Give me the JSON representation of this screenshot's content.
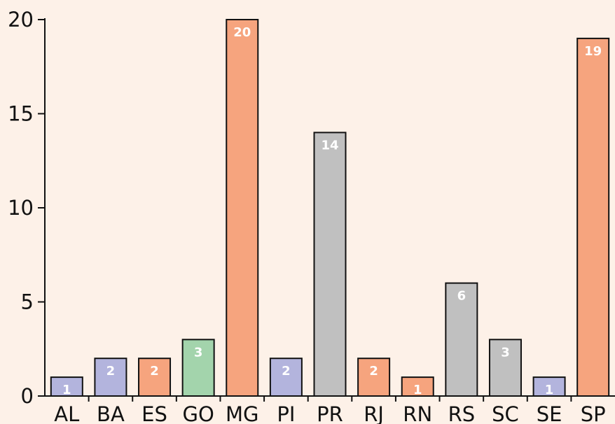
{
  "chart_data": {
    "type": "bar",
    "categories": [
      "AL",
      "BA",
      "ES",
      "GO",
      "MG",
      "PI",
      "PR",
      "RJ",
      "RN",
      "RS",
      "SC",
      "SE",
      "SP"
    ],
    "values": [
      1,
      2,
      2,
      3,
      20,
      2,
      14,
      2,
      1,
      6,
      3,
      1,
      19
    ],
    "bar_colors": [
      "#b3b4dd",
      "#b3b4dd",
      "#f6a47e",
      "#a3d4ac",
      "#f6a47e",
      "#b3b4dd",
      "#c0c0c0",
      "#f6a47e",
      "#f6a47e",
      "#c0c0c0",
      "#c0c0c0",
      "#b3b4dd",
      "#f6a47e"
    ],
    "title": "",
    "xlabel": "",
    "ylabel": "",
    "ylim": [
      0,
      20
    ],
    "yticks": [
      0,
      5,
      10,
      15,
      20
    ],
    "grid": false,
    "legend": "none",
    "data_labels": true,
    "background": "#fdf1e8"
  }
}
